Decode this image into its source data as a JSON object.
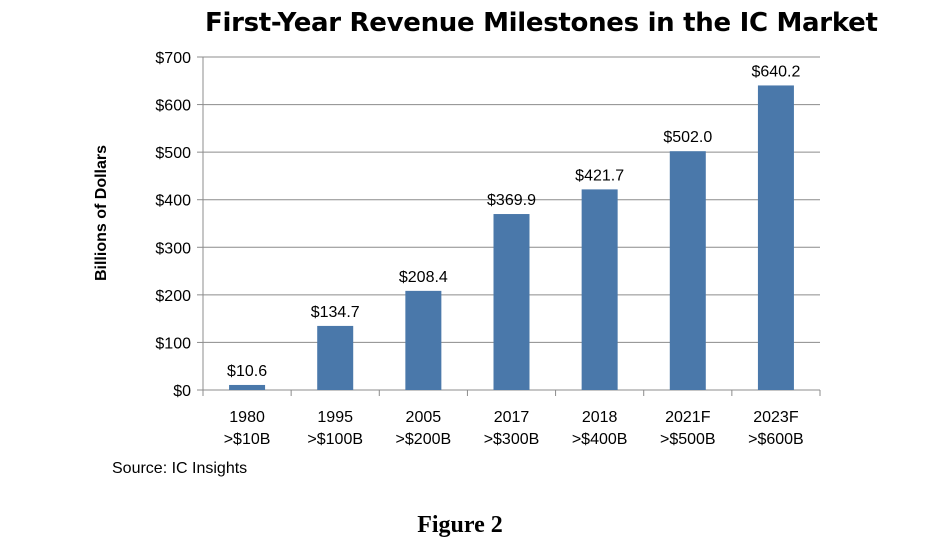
{
  "chart_data": {
    "type": "bar",
    "title": "First-Year Revenue Milestones in the IC Market",
    "ylabel": "Billions of Dollars",
    "xlabel": "",
    "ylim": [
      0,
      700
    ],
    "yticks": [
      0,
      100,
      200,
      300,
      400,
      500,
      600,
      700
    ],
    "ytick_labels": [
      "$0",
      "$100",
      "$200",
      "$300",
      "$400",
      "$500",
      "$600",
      "$700"
    ],
    "categories": [
      {
        "year": "1980",
        "milestone": ">$10B"
      },
      {
        "year": "1995",
        "milestone": ">$100B"
      },
      {
        "year": "2005",
        "milestone": ">$200B"
      },
      {
        "year": "2017",
        "milestone": ">$300B"
      },
      {
        "year": "2018",
        "milestone": ">$400B"
      },
      {
        "year": "2021F",
        "milestone": ">$500B"
      },
      {
        "year": "2023F",
        "milestone": ">$600B"
      }
    ],
    "values": [
      10.6,
      134.7,
      208.4,
      369.9,
      421.7,
      502.0,
      640.2
    ],
    "data_labels": [
      "$10.6",
      "$134.7",
      "$208.4",
      "$369.9",
      "$421.7",
      "$502.0",
      "$640.2"
    ],
    "grid": true,
    "legend": "none",
    "bar_color": "#4a78aa"
  },
  "source": "Source:  IC Insights",
  "caption": "Figure 2"
}
